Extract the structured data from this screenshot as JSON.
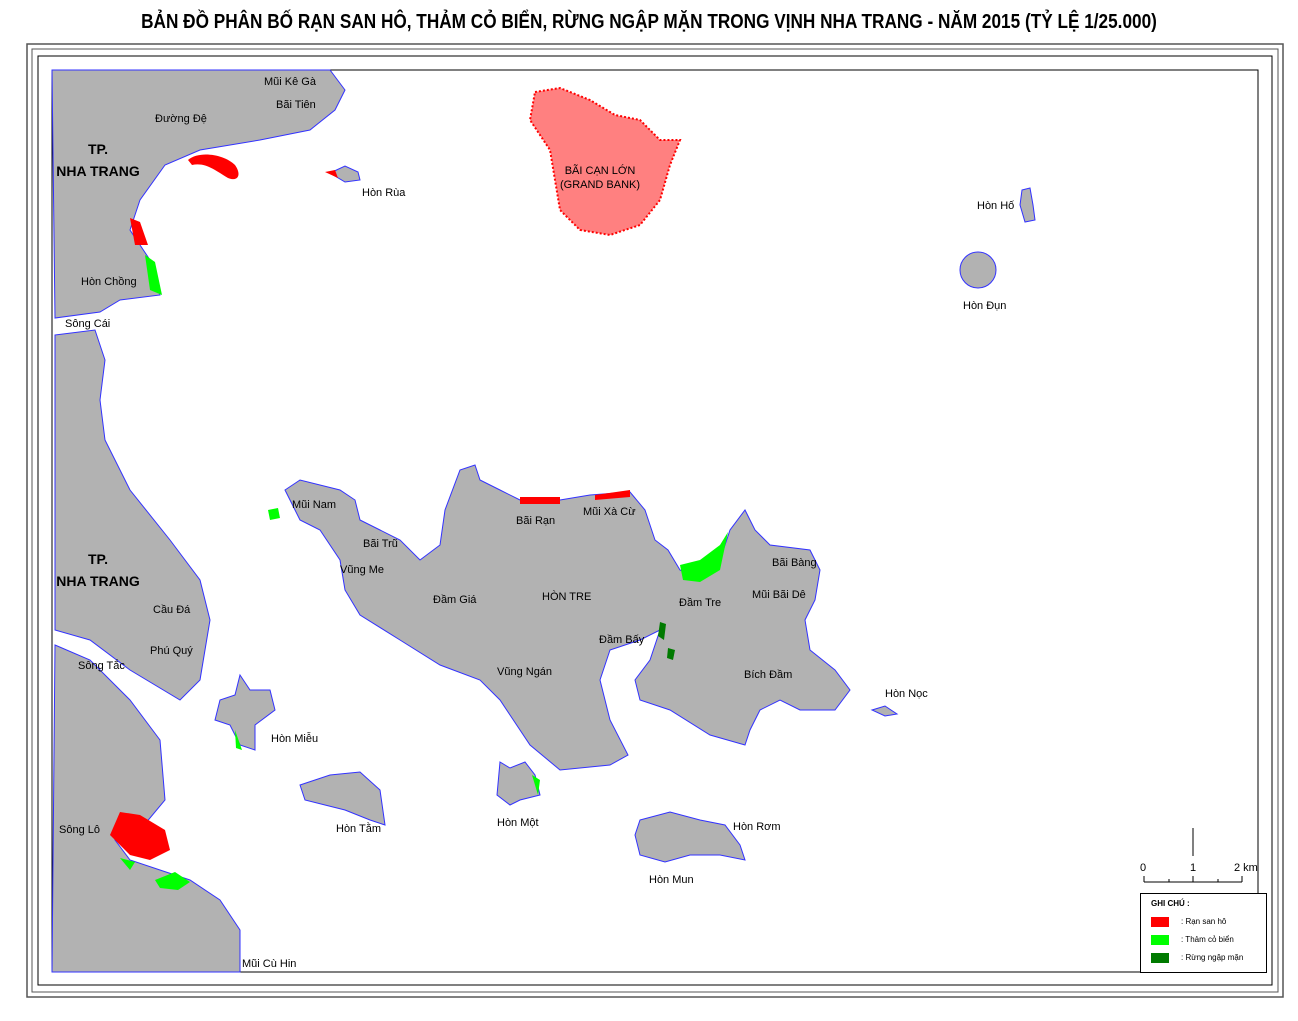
{
  "title": "BẢN ĐỒ PHÂN BỐ RẠN SAN HÔ, THẢM CỎ BIỂN, RỪNG NGẬP MẶN TRONG VỊNH NHA TRANG - NĂM 2015 (TỶ LỆ 1/25.000)",
  "colors": {
    "land": "#b2b2b2",
    "coast": "#3232ff",
    "coral": "#ff0000",
    "seagrass": "#00ff00",
    "mangrove": "#007a00",
    "water": "#ffffff"
  },
  "places": {
    "mui_ke_ga": "Mũi Kê Gà",
    "bai_tien": "Bãi Tiên",
    "duong_de": "Đường Đệ",
    "tp_nha_trang_1": "TP.\nNHA TRANG",
    "hon_rua": "Hòn Rùa",
    "bai_can_lon": "BÃI CẠN LỚN\n(GRAND BANK)",
    "hon_ho": "Hòn Hố",
    "hon_dun": "Hòn Đụn",
    "hon_chong": "Hòn Chồng",
    "song_cai": "Sông Cái",
    "mui_nam": "Mũi Nam",
    "bai_tru": "Bãi Trũ",
    "vung_me": "Vũng Me",
    "bai_ran": "Bãi Rạn",
    "mui_xa_cu": "Mũi Xà Cừ",
    "dam_gia": "Đầm Giá",
    "hon_tre": "HÒN TRE",
    "dam_tre": "Đầm Tre",
    "bai_bang": "Bãi Bàng",
    "mui_bai_de": "Mũi Bãi Dê",
    "dam_bay": "Đầm Bấy",
    "vung_ngan": "Vũng Ngán",
    "bich_dam": "Bích Đầm",
    "hon_noc": "Hòn Nọc",
    "tp_nha_trang_2": "TP.\nNHA TRANG",
    "cau_da": "Cầu Đá",
    "phu_quy": "Phú Quý",
    "song_tac": "Sông Tắc",
    "hon_mieu": "Hòn Miễu",
    "hon_tam": "Hòn Tằm",
    "hon_mot": "Hòn Một",
    "hon_rom": "Hòn Rơm",
    "hon_mun": "Hòn Mun",
    "song_lo": "Sông Lô",
    "mui_cu_hin": "Mũi Cù Hin"
  },
  "scale_bar": {
    "ticks": [
      "0",
      "1",
      "2 km"
    ]
  },
  "legend": {
    "title": "GHI CHÚ :",
    "items": [
      {
        "label": ": Rạn san hô",
        "color": "#ff0000"
      },
      {
        "label": ": Thảm cỏ biển",
        "color": "#00ff00"
      },
      {
        "label": ": Rừng ngập mặn",
        "color": "#007a00"
      }
    ]
  }
}
